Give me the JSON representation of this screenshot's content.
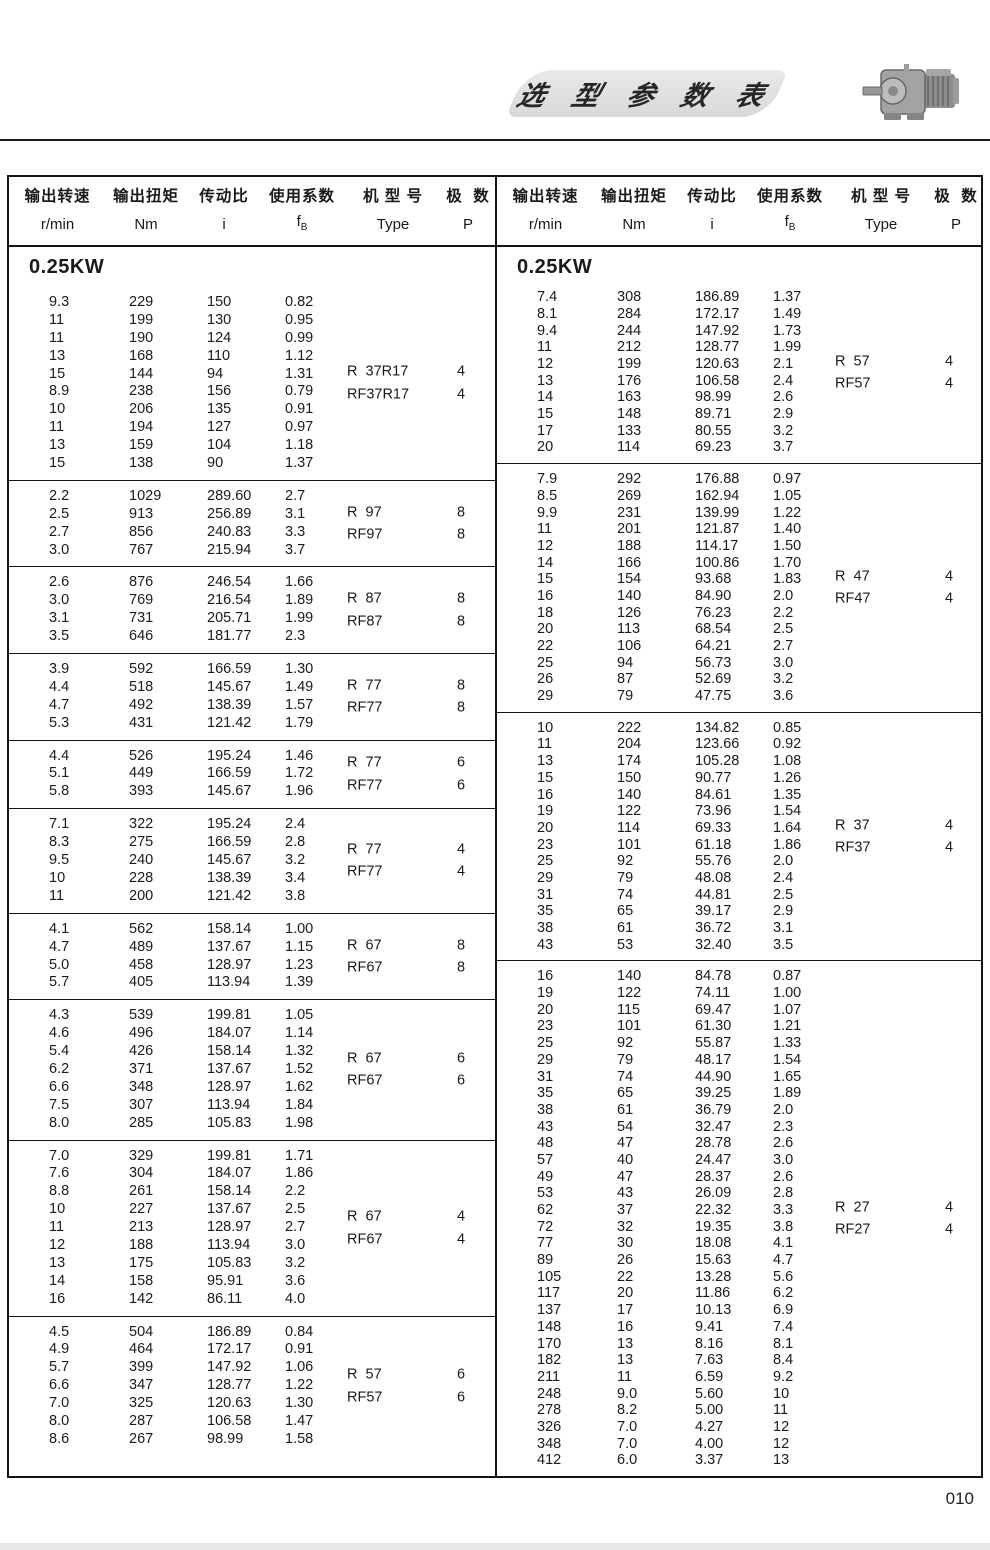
{
  "page": {
    "title_banner": "选 型 参 数 表",
    "page_number": "010"
  },
  "columns": {
    "speed_cn": "输出转速",
    "speed_unit": "r/min",
    "torque_cn": "输出扭矩",
    "torque_unit": "Nm",
    "ratio_cn": "传动比",
    "ratio_unit": "i",
    "factor_cn": "使用系数",
    "factor_f": "f",
    "factor_sub": "B",
    "type_cn": "机 型 号",
    "type_unit": "Type",
    "poles_cn": "极  数",
    "poles_unit": "P"
  },
  "left_table": {
    "section": "0.25KW",
    "groups": [
      {
        "rows": [
          [
            "9.3",
            "229",
            "150",
            "0.82"
          ],
          [
            "11",
            "199",
            "130",
            "0.95"
          ],
          [
            "11",
            "190",
            "124",
            "0.99"
          ],
          [
            "13",
            "168",
            "110",
            "1.12"
          ],
          [
            "15",
            "144",
            "94",
            "1.31"
          ],
          [
            "8.9",
            "238",
            "156",
            "0.79"
          ],
          [
            "10",
            "206",
            "135",
            "0.91"
          ],
          [
            "11",
            "194",
            "127",
            "0.97"
          ],
          [
            "13",
            "159",
            "104",
            "1.18"
          ],
          [
            "15",
            "138",
            "90",
            "1.37"
          ]
        ],
        "types": [
          {
            "name": "R  37R17",
            "p": "4"
          },
          {
            "name": "RF37R17",
            "p": "4"
          }
        ]
      },
      {
        "rows": [
          [
            "2.2",
            "1029",
            "289.60",
            "2.7"
          ],
          [
            "2.5",
            "913",
            "256.89",
            "3.1"
          ],
          [
            "2.7",
            "856",
            "240.83",
            "3.3"
          ],
          [
            "3.0",
            "767",
            "215.94",
            "3.7"
          ]
        ],
        "types": [
          {
            "name": "R  97",
            "p": "8"
          },
          {
            "name": "RF97",
            "p": "8"
          }
        ]
      },
      {
        "rows": [
          [
            "2.6",
            "876",
            "246.54",
            "1.66"
          ],
          [
            "3.0",
            "769",
            "216.54",
            "1.89"
          ],
          [
            "3.1",
            "731",
            "205.71",
            "1.99"
          ],
          [
            "3.5",
            "646",
            "181.77",
            "2.3"
          ]
        ],
        "types": [
          {
            "name": "R  87",
            "p": "8"
          },
          {
            "name": "RF87",
            "p": "8"
          }
        ]
      },
      {
        "rows": [
          [
            "3.9",
            "592",
            "166.59",
            "1.30"
          ],
          [
            "4.4",
            "518",
            "145.67",
            "1.49"
          ],
          [
            "4.7",
            "492",
            "138.39",
            "1.57"
          ],
          [
            "5.3",
            "431",
            "121.42",
            "1.79"
          ]
        ],
        "types": [
          {
            "name": "R  77",
            "p": "8"
          },
          {
            "name": "RF77",
            "p": "8"
          }
        ]
      },
      {
        "rows": [
          [
            "4.4",
            "526",
            "195.24",
            "1.46"
          ],
          [
            "5.1",
            "449",
            "166.59",
            "1.72"
          ],
          [
            "5.8",
            "393",
            "145.67",
            "1.96"
          ]
        ],
        "types": [
          {
            "name": "R  77",
            "p": "6"
          },
          {
            "name": "RF77",
            "p": "6"
          }
        ]
      },
      {
        "rows": [
          [
            "7.1",
            "322",
            "195.24",
            "2.4"
          ],
          [
            "8.3",
            "275",
            "166.59",
            "2.8"
          ],
          [
            "9.5",
            "240",
            "145.67",
            "3.2"
          ],
          [
            "10",
            "228",
            "138.39",
            "3.4"
          ],
          [
            "11",
            "200",
            "121.42",
            "3.8"
          ]
        ],
        "types": [
          {
            "name": "R  77",
            "p": "4"
          },
          {
            "name": "RF77",
            "p": "4"
          }
        ]
      },
      {
        "rows": [
          [
            "4.1",
            "562",
            "158.14",
            "1.00"
          ],
          [
            "4.7",
            "489",
            "137.67",
            "1.15"
          ],
          [
            "5.0",
            "458",
            "128.97",
            "1.23"
          ],
          [
            "5.7",
            "405",
            "113.94",
            "1.39"
          ]
        ],
        "types": [
          {
            "name": "R  67",
            "p": "8"
          },
          {
            "name": "RF67",
            "p": "8"
          }
        ]
      },
      {
        "rows": [
          [
            "4.3",
            "539",
            "199.81",
            "1.05"
          ],
          [
            "4.6",
            "496",
            "184.07",
            "1.14"
          ],
          [
            "5.4",
            "426",
            "158.14",
            "1.32"
          ],
          [
            "6.2",
            "371",
            "137.67",
            "1.52"
          ],
          [
            "6.6",
            "348",
            "128.97",
            "1.62"
          ],
          [
            "7.5",
            "307",
            "113.94",
            "1.84"
          ],
          [
            "8.0",
            "285",
            "105.83",
            "1.98"
          ]
        ],
        "types": [
          {
            "name": "R  67",
            "p": "6"
          },
          {
            "name": "RF67",
            "p": "6"
          }
        ]
      },
      {
        "rows": [
          [
            "7.0",
            "329",
            "199.81",
            "1.71"
          ],
          [
            "7.6",
            "304",
            "184.07",
            "1.86"
          ],
          [
            "8.8",
            "261",
            "158.14",
            "2.2"
          ],
          [
            "10",
            "227",
            "137.67",
            "2.5"
          ],
          [
            "11",
            "213",
            "128.97",
            "2.7"
          ],
          [
            "12",
            "188",
            "113.94",
            "3.0"
          ],
          [
            "13",
            "175",
            "105.83",
            "3.2"
          ],
          [
            "14",
            "158",
            "95.91",
            "3.6"
          ],
          [
            "16",
            "142",
            "86.11",
            "4.0"
          ]
        ],
        "types": [
          {
            "name": "R  67",
            "p": "4"
          },
          {
            "name": "RF67",
            "p": "4"
          }
        ]
      },
      {
        "rows": [
          [
            "4.5",
            "504",
            "186.89",
            "0.84"
          ],
          [
            "4.9",
            "464",
            "172.17",
            "0.91"
          ],
          [
            "5.7",
            "399",
            "147.92",
            "1.06"
          ],
          [
            "6.6",
            "347",
            "128.77",
            "1.22"
          ],
          [
            "7.0",
            "325",
            "120.63",
            "1.30"
          ],
          [
            "8.0",
            "287",
            "106.58",
            "1.47"
          ],
          [
            "8.6",
            "267",
            "98.99",
            "1.58"
          ]
        ],
        "types": [
          {
            "name": "R  57",
            "p": "6"
          },
          {
            "name": "RF57",
            "p": "6"
          }
        ]
      }
    ]
  },
  "right_table": {
    "section": "0.25KW",
    "groups": [
      {
        "rows": [
          [
            "7.4",
            "308",
            "186.89",
            "1.37"
          ],
          [
            "8.1",
            "284",
            "172.17",
            "1.49"
          ],
          [
            "9.4",
            "244",
            "147.92",
            "1.73"
          ],
          [
            "11",
            "212",
            "128.77",
            "1.99"
          ],
          [
            "12",
            "199",
            "120.63",
            "2.1"
          ],
          [
            "13",
            "176",
            "106.58",
            "2.4"
          ],
          [
            "14",
            "163",
            "98.99",
            "2.6"
          ],
          [
            "15",
            "148",
            "89.71",
            "2.9"
          ],
          [
            "17",
            "133",
            "80.55",
            "3.2"
          ],
          [
            "20",
            "114",
            "69.23",
            "3.7"
          ]
        ],
        "types": [
          {
            "name": "R  57",
            "p": "4"
          },
          {
            "name": "RF57",
            "p": "4"
          }
        ]
      },
      {
        "rows": [
          [
            "7.9",
            "292",
            "176.88",
            "0.97"
          ],
          [
            "8.5",
            "269",
            "162.94",
            "1.05"
          ],
          [
            "9.9",
            "231",
            "139.99",
            "1.22"
          ],
          [
            "11",
            "201",
            "121.87",
            "1.40"
          ],
          [
            "12",
            "188",
            "114.17",
            "1.50"
          ],
          [
            "14",
            "166",
            "100.86",
            "1.70"
          ],
          [
            "15",
            "154",
            "93.68",
            "1.83"
          ],
          [
            "16",
            "140",
            "84.90",
            "2.0"
          ],
          [
            "18",
            "126",
            "76.23",
            "2.2"
          ],
          [
            "20",
            "113",
            "68.54",
            "2.5"
          ],
          [
            "22",
            "106",
            "64.21",
            "2.7"
          ],
          [
            "25",
            "94",
            "56.73",
            "3.0"
          ],
          [
            "26",
            "87",
            "52.69",
            "3.2"
          ],
          [
            "29",
            "79",
            "47.75",
            "3.6"
          ]
        ],
        "types": [
          {
            "name": "R  47",
            "p": "4"
          },
          {
            "name": "RF47",
            "p": "4"
          }
        ]
      },
      {
        "rows": [
          [
            "10",
            "222",
            "134.82",
            "0.85"
          ],
          [
            "11",
            "204",
            "123.66",
            "0.92"
          ],
          [
            "13",
            "174",
            "105.28",
            "1.08"
          ],
          [
            "15",
            "150",
            "90.77",
            "1.26"
          ],
          [
            "16",
            "140",
            "84.61",
            "1.35"
          ],
          [
            "19",
            "122",
            "73.96",
            "1.54"
          ],
          [
            "20",
            "114",
            "69.33",
            "1.64"
          ],
          [
            "23",
            "101",
            "61.18",
            "1.86"
          ],
          [
            "25",
            "92",
            "55.76",
            "2.0"
          ],
          [
            "29",
            "79",
            "48.08",
            "2.4"
          ],
          [
            "31",
            "74",
            "44.81",
            "2.5"
          ],
          [
            "35",
            "65",
            "39.17",
            "2.9"
          ],
          [
            "38",
            "61",
            "36.72",
            "3.1"
          ],
          [
            "43",
            "53",
            "32.40",
            "3.5"
          ]
        ],
        "types": [
          {
            "name": "R  37",
            "p": "4"
          },
          {
            "name": "RF37",
            "p": "4"
          }
        ]
      },
      {
        "rows": [
          [
            "16",
            "140",
            "84.78",
            "0.87"
          ],
          [
            "19",
            "122",
            "74.11",
            "1.00"
          ],
          [
            "20",
            "115",
            "69.47",
            "1.07"
          ],
          [
            "23",
            "101",
            "61.30",
            "1.21"
          ],
          [
            "25",
            "92",
            "55.87",
            "1.33"
          ],
          [
            "29",
            "79",
            "48.17",
            "1.54"
          ],
          [
            "31",
            "74",
            "44.90",
            "1.65"
          ],
          [
            "35",
            "65",
            "39.25",
            "1.89"
          ],
          [
            "38",
            "61",
            "36.79",
            "2.0"
          ],
          [
            "43",
            "54",
            "32.47",
            "2.3"
          ],
          [
            "48",
            "47",
            "28.78",
            "2.6"
          ],
          [
            "57",
            "40",
            "24.47",
            "3.0"
          ],
          [
            "49",
            "47",
            "28.37",
            "2.6"
          ],
          [
            "53",
            "43",
            "26.09",
            "2.8"
          ],
          [
            "62",
            "37",
            "22.32",
            "3.3"
          ],
          [
            "72",
            "32",
            "19.35",
            "3.8"
          ],
          [
            "77",
            "30",
            "18.08",
            "4.1"
          ],
          [
            "89",
            "26",
            "15.63",
            "4.7"
          ],
          [
            "105",
            "22",
            "13.28",
            "5.6"
          ],
          [
            "117",
            "20",
            "11.86",
            "6.2"
          ],
          [
            "137",
            "17",
            "10.13",
            "6.9"
          ],
          [
            "148",
            "16",
            "9.41",
            "7.4"
          ],
          [
            "170",
            "13",
            "8.16",
            "8.1"
          ],
          [
            "182",
            "13",
            "7.63",
            "8.4"
          ],
          [
            "211",
            "11",
            "6.59",
            "9.2"
          ],
          [
            "248",
            "9.0",
            "5.60",
            "10"
          ],
          [
            "278",
            "8.2",
            "5.00",
            "11"
          ],
          [
            "326",
            "7.0",
            "4.27",
            "12"
          ],
          [
            "348",
            "7.0",
            "4.00",
            "12"
          ],
          [
            "412",
            "6.0",
            "3.37",
            "13"
          ]
        ],
        "types": [
          {
            "name": "R  27",
            "p": "4"
          },
          {
            "name": "RF27",
            "p": "4"
          }
        ]
      }
    ]
  }
}
